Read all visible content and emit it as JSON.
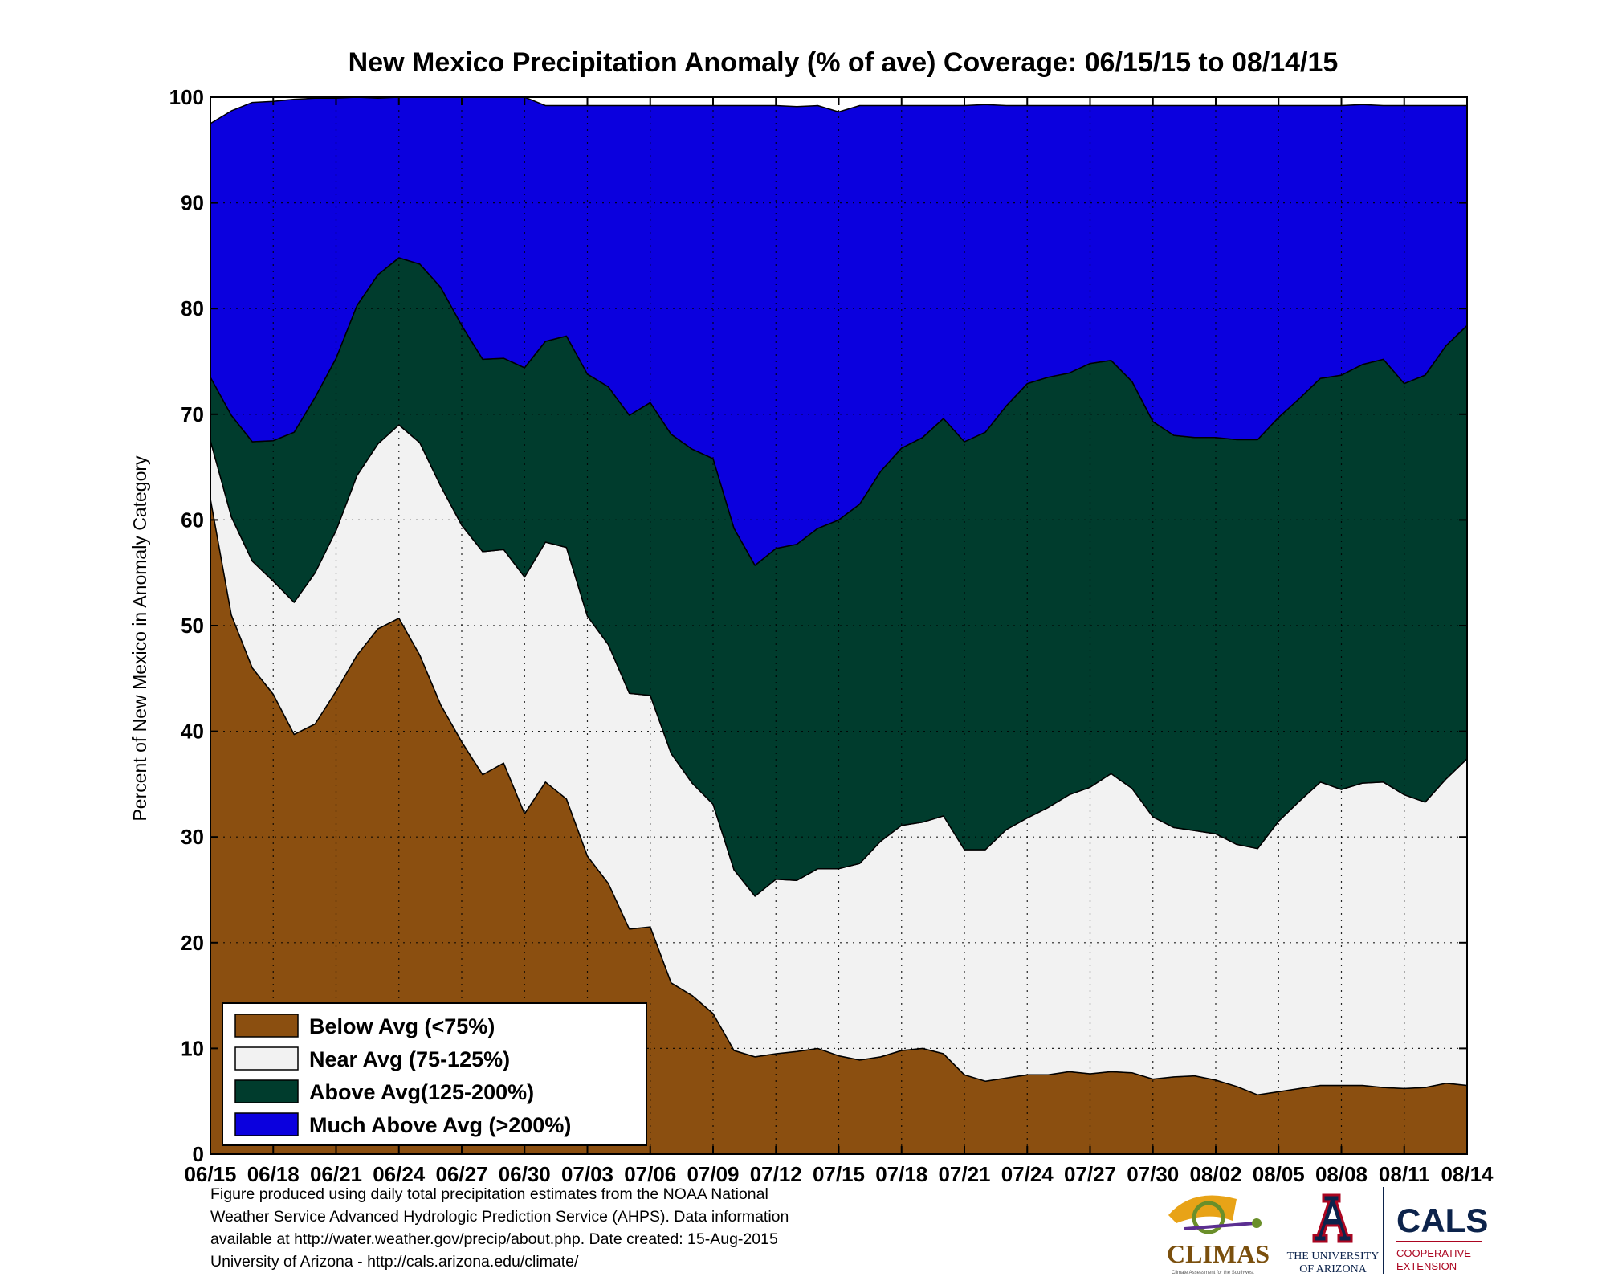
{
  "chart_data": {
    "type": "area",
    "title": "New Mexico Precipitation Anomaly (% of ave) Coverage: 06/15/15 to 08/14/15",
    "ylabel": "Percent of New Mexico in Anomaly Category",
    "xlabel": "",
    "ylim": [
      0,
      100
    ],
    "yticks": [
      0,
      10,
      20,
      30,
      40,
      50,
      60,
      70,
      80,
      90,
      100
    ],
    "xticks": [
      "06/15",
      "06/18",
      "06/21",
      "06/24",
      "06/27",
      "06/30",
      "07/03",
      "07/06",
      "07/09",
      "07/12",
      "07/15",
      "07/18",
      "07/21",
      "07/24",
      "07/27",
      "07/30",
      "08/02",
      "08/05",
      "08/08",
      "08/11",
      "08/14"
    ],
    "grid": true,
    "stacked": true,
    "legend_position": "bottom-left",
    "x": [
      "06/15",
      "06/16",
      "06/17",
      "06/18",
      "06/19",
      "06/20",
      "06/21",
      "06/22",
      "06/23",
      "06/24",
      "06/25",
      "06/26",
      "06/27",
      "06/28",
      "06/29",
      "06/30",
      "07/01",
      "07/02",
      "07/03",
      "07/04",
      "07/05",
      "07/06",
      "07/07",
      "07/08",
      "07/09",
      "07/10",
      "07/11",
      "07/12",
      "07/13",
      "07/14",
      "07/15",
      "07/16",
      "07/17",
      "07/18",
      "07/19",
      "07/20",
      "07/21",
      "07/22",
      "07/23",
      "07/24",
      "07/25",
      "07/26",
      "07/27",
      "07/28",
      "07/29",
      "07/30",
      "07/31",
      "08/01",
      "08/02",
      "08/03",
      "08/04",
      "08/05",
      "08/06",
      "08/07",
      "08/08",
      "08/09",
      "08/10",
      "08/11",
      "08/12",
      "08/13",
      "08/14"
    ],
    "series": [
      {
        "name": "Below Avg (<75%)",
        "color": "#8b4f10",
        "values": [
          62,
          51,
          46,
          43.5,
          39.7,
          40.7,
          43.8,
          47.2,
          49.7,
          50.7,
          47.2,
          42.5,
          39,
          35.9,
          37,
          32.2,
          35.2,
          33.6,
          28.2,
          25.6,
          21.3,
          21.5,
          16.2,
          15,
          13.3,
          9.8,
          9.2,
          9.5,
          9.7,
          10,
          9.3,
          8.9,
          9.2,
          9.8,
          10,
          9.5,
          7.5,
          6.9,
          7.2,
          7.5,
          7.5,
          7.8,
          7.6,
          7.8,
          7.7,
          7.1,
          7.3,
          7.4,
          7,
          6.4,
          5.6,
          5.9,
          6.2,
          6.5,
          6.5,
          6.5,
          6.3,
          6.2,
          6.3,
          6.7,
          6.5
        ]
      },
      {
        "name": "Near Avg (75-125%)",
        "color": "#f2f2f2",
        "values": [
          5.5,
          9.3,
          10.1,
          10.7,
          12.5,
          14.3,
          15.2,
          17,
          17.5,
          18.3,
          20.1,
          20.7,
          20.5,
          21.1,
          20.2,
          22.4,
          22.7,
          23.8,
          22.7,
          22.6,
          22.3,
          21.9,
          21.7,
          20.1,
          19.8,
          17.1,
          15.2,
          16.5,
          16.2,
          17,
          17.7,
          18.6,
          20.4,
          21.3,
          21.4,
          22.5,
          21.3,
          21.9,
          23.5,
          24.3,
          25.3,
          26.2,
          27.1,
          28.2,
          26.9,
          24.8,
          23.6,
          23.2,
          23.3,
          22.9,
          23.3,
          25.6,
          27.2,
          28.7,
          28,
          28.6,
          28.9,
          27.8,
          27,
          28.8,
          30.9
        ]
      },
      {
        "name": "Above Avg(125-200%)",
        "color": "#003c2d",
        "values": [
          6,
          9.6,
          11.3,
          13.3,
          16.1,
          16.6,
          16.3,
          16.1,
          16,
          15.8,
          16.9,
          18.8,
          18.9,
          18.2,
          18.1,
          19.8,
          19,
          20,
          22.9,
          24.4,
          26.3,
          27.7,
          30.2,
          31.6,
          32.7,
          32.3,
          31.3,
          31.3,
          31.8,
          32.2,
          33,
          34,
          35,
          35.7,
          36.4,
          37.6,
          38.6,
          39.5,
          40.1,
          41.1,
          40.7,
          39.9,
          40.1,
          39.1,
          38.5,
          37.4,
          37.1,
          37.2,
          37.5,
          38.3,
          38.7,
          38.2,
          38.1,
          38.2,
          39.2,
          39.6,
          40,
          38.9,
          40.4,
          41,
          41
        ]
      },
      {
        "name": "Much Above Avg (>200%)",
        "color": "#0b00de",
        "values": [
          24,
          28.8,
          32.1,
          32.1,
          31.5,
          28.3,
          24.6,
          19.7,
          16.7,
          15.2,
          15.8,
          18,
          21.6,
          24.8,
          24.7,
          25.6,
          22.3,
          21.8,
          25.4,
          26.6,
          29.3,
          28.1,
          31.1,
          32.5,
          33.4,
          40,
          43.5,
          41.9,
          41.4,
          40,
          38.6,
          37.7,
          34.6,
          32.4,
          31.4,
          29.6,
          31.8,
          31,
          28.4,
          26.3,
          25.7,
          25.3,
          24.4,
          24.1,
          26.1,
          29.9,
          31.2,
          31.4,
          31.4,
          31.6,
          31.6,
          29.5,
          27.7,
          25.8,
          25.5,
          24.6,
          24,
          26.3,
          25.5,
          22.7,
          20.8
        ]
      }
    ]
  },
  "footer": {
    "line1": "Figure produced using daily total precipitation estimates from the NOAA National",
    "line2": "Weather Service Advanced Hydrologic Prediction Service (AHPS). Data information",
    "line3": "available at http://water.weather.gov/precip/about.php. Date created: 15-Aug-2015",
    "line4": "University of Arizona - http://cals.arizona.edu/climate/"
  },
  "logos": {
    "climas": "CLIMAS",
    "climas_tagline": "Climate Assessment for the Southwest",
    "ua_line1": "THE UNIVERSITY",
    "ua_line2": "OF ARIZONA",
    "cals": "CALS",
    "cals_line1": "COOPERATIVE",
    "cals_line2": "EXTENSION"
  }
}
